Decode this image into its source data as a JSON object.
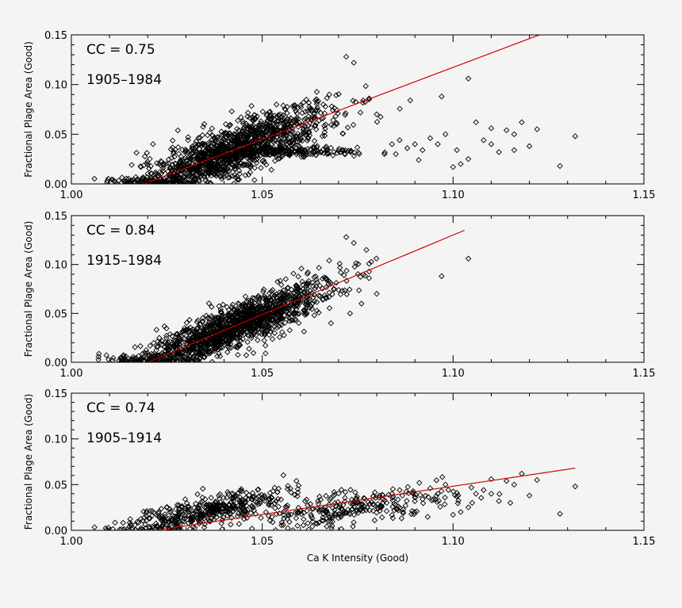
{
  "chart_data": [
    {
      "type": "scatter",
      "cc_label": "CC = 0.75",
      "period_label": "1905–1984",
      "xlabel": "",
      "ylabel": "Fractional Plage Area (Good)",
      "xlim": [
        1.0,
        1.15
      ],
      "ylim": [
        0.0,
        0.15
      ],
      "xticks": [
        "1.00",
        "1.05",
        "1.10",
        "1.15"
      ],
      "yticks": [
        "0.00",
        "0.05",
        "0.10",
        "0.15"
      ],
      "grid": false,
      "marker": "diamond-open",
      "fit_line": {
        "color": "#cc0000",
        "x": [
          1.019,
          1.124
        ],
        "y": [
          0.0,
          0.152
        ]
      },
      "clusters": [
        {
          "x_center": 1.042,
          "x_spread": 0.013,
          "slope": 1.45,
          "intercept": -0.0275,
          "noise": 0.0125,
          "count": 1400
        },
        {
          "x_center": 1.06,
          "x_spread": 0.009,
          "slope": 0.15,
          "intercept": -0.14,
          "noise": 0.009,
          "count": 150
        }
      ],
      "points": [
        [
          1.072,
          0.128
        ],
        [
          1.074,
          0.122
        ],
        [
          1.078,
          0.086
        ],
        [
          1.08,
          0.07
        ],
        [
          1.082,
          0.03
        ],
        [
          1.084,
          0.04
        ],
        [
          1.085,
          0.03
        ],
        [
          1.088,
          0.036
        ],
        [
          1.09,
          0.04
        ],
        [
          1.092,
          0.034
        ],
        [
          1.094,
          0.046
        ],
        [
          1.096,
          0.04
        ],
        [
          1.097,
          0.088
        ],
        [
          1.098,
          0.05
        ],
        [
          1.1,
          0.017
        ],
        [
          1.101,
          0.034
        ],
        [
          1.104,
          0.025
        ],
        [
          1.104,
          0.106
        ],
        [
          1.106,
          0.062
        ],
        [
          1.108,
          0.044
        ],
        [
          1.11,
          0.04
        ],
        [
          1.112,
          0.032
        ],
        [
          1.114,
          0.054
        ],
        [
          1.116,
          0.05
        ],
        [
          1.118,
          0.062
        ],
        [
          1.12,
          0.038
        ],
        [
          1.122,
          0.055
        ],
        [
          1.128,
          0.018
        ],
        [
          1.132,
          0.048
        ],
        [
          1.086,
          0.044
        ],
        [
          1.091,
          0.024
        ],
        [
          1.102,
          0.02
        ],
        [
          1.11,
          0.056
        ],
        [
          1.116,
          0.034
        ]
      ]
    },
    {
      "type": "scatter",
      "cc_label": "CC = 0.84",
      "period_label": "1915–1984",
      "xlabel": "",
      "ylabel": "Fractional Plage Area (Good)",
      "xlim": [
        1.0,
        1.15
      ],
      "ylim": [
        0.0,
        0.15
      ],
      "xticks": [
        "1.00",
        "1.05",
        "1.10",
        "1.15"
      ],
      "yticks": [
        "0.00",
        "0.05",
        "0.10",
        "0.15"
      ],
      "grid": false,
      "marker": "diamond-open",
      "fit_line": {
        "color": "#cc0000",
        "x": [
          1.02,
          1.103
        ],
        "y": [
          0.0,
          0.135
        ]
      },
      "clusters": [
        {
          "x_center": 1.042,
          "x_spread": 0.013,
          "slope": 1.6,
          "intercept": -0.032,
          "noise": 0.011,
          "count": 1450
        }
      ],
      "points": [
        [
          1.072,
          0.128
        ],
        [
          1.074,
          0.122
        ],
        [
          1.078,
          0.086
        ],
        [
          1.08,
          0.07
        ],
        [
          1.076,
          0.06
        ],
        [
          1.073,
          0.05
        ],
        [
          1.07,
          0.074
        ],
        [
          1.097,
          0.088
        ],
        [
          1.104,
          0.106
        ],
        [
          1.068,
          0.04
        ]
      ]
    },
    {
      "type": "scatter",
      "cc_label": "CC = 0.74",
      "period_label": "1905–1914",
      "xlabel": "Ca K Intensity (Good)",
      "ylabel": "Fractional Plage Area (Good)",
      "xlim": [
        1.0,
        1.15
      ],
      "ylim": [
        0.0,
        0.15
      ],
      "xticks": [
        "1.00",
        "1.05",
        "1.10",
        "1.15"
      ],
      "yticks": [
        "0.00",
        "0.05",
        "0.10",
        "0.15"
      ],
      "grid": false,
      "marker": "diamond-open",
      "fit_line": {
        "color": "#cc0000",
        "x": [
          1.022,
          1.132
        ],
        "y": [
          0.0,
          0.068
        ]
      },
      "clusters": [
        {
          "x_center": 1.035,
          "x_spread": 0.011,
          "slope": 0.95,
          "intercept": -0.013,
          "noise": 0.008,
          "count": 420
        },
        {
          "x_center": 1.07,
          "x_spread": 0.015,
          "slope": 0.55,
          "intercept": -0.016,
          "noise": 0.009,
          "count": 280
        }
      ],
      "points": [
        [
          1.086,
          0.044
        ],
        [
          1.092,
          0.034
        ],
        [
          1.096,
          0.04
        ],
        [
          1.098,
          0.05
        ],
        [
          1.1,
          0.017
        ],
        [
          1.104,
          0.025
        ],
        [
          1.106,
          0.04
        ],
        [
          1.108,
          0.044
        ],
        [
          1.11,
          0.04
        ],
        [
          1.112,
          0.032
        ],
        [
          1.114,
          0.054
        ],
        [
          1.116,
          0.05
        ],
        [
          1.118,
          0.062
        ],
        [
          1.12,
          0.038
        ],
        [
          1.122,
          0.055
        ],
        [
          1.128,
          0.018
        ],
        [
          1.132,
          0.048
        ],
        [
          1.102,
          0.02
        ],
        [
          1.11,
          0.056
        ],
        [
          1.09,
          0.036
        ],
        [
          1.094,
          0.046
        ],
        [
          1.084,
          0.04
        ],
        [
          1.105,
          0.03
        ],
        [
          1.115,
          0.03
        ]
      ]
    }
  ]
}
